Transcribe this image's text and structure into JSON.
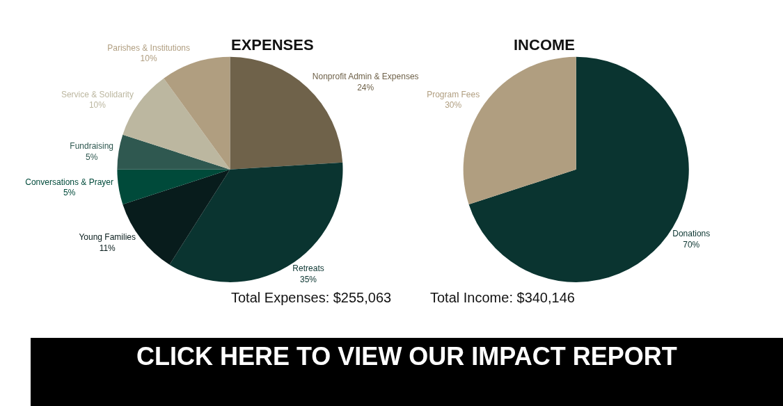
{
  "chart_data": [
    {
      "type": "pie",
      "title": "EXPENSES",
      "categories": [
        "Nonprofit Admin & Expenses",
        "Retreats",
        "Young Families",
        "Conversations & Prayer",
        "Fundraising",
        "Service & Solidarity",
        "Parishes & Institutions"
      ],
      "values": [
        24,
        35,
        11,
        5,
        5,
        10,
        10
      ],
      "value_labels": [
        "24%",
        "35%",
        "11%",
        "5%",
        "5%",
        "10%",
        "10%"
      ],
      "colors": [
        "#6f624a",
        "#0a3430",
        "#081c1c",
        "#004a3a",
        "#2f5850",
        "#bcb7a0",
        "#b09e80"
      ],
      "annotations": [
        "Total Expenses: $255,063"
      ]
    },
    {
      "type": "pie",
      "title": "INCOME",
      "categories": [
        "Donations",
        "Program Fees"
      ],
      "values": [
        70,
        30
      ],
      "value_labels": [
        "70%",
        "30%"
      ],
      "colors": [
        "#0a3430",
        "#b09e80"
      ],
      "annotations": [
        "Total Income: $340,146",
        "CLICK HERE TO VIEW OUR IMPACT REPORT"
      ]
    }
  ]
}
